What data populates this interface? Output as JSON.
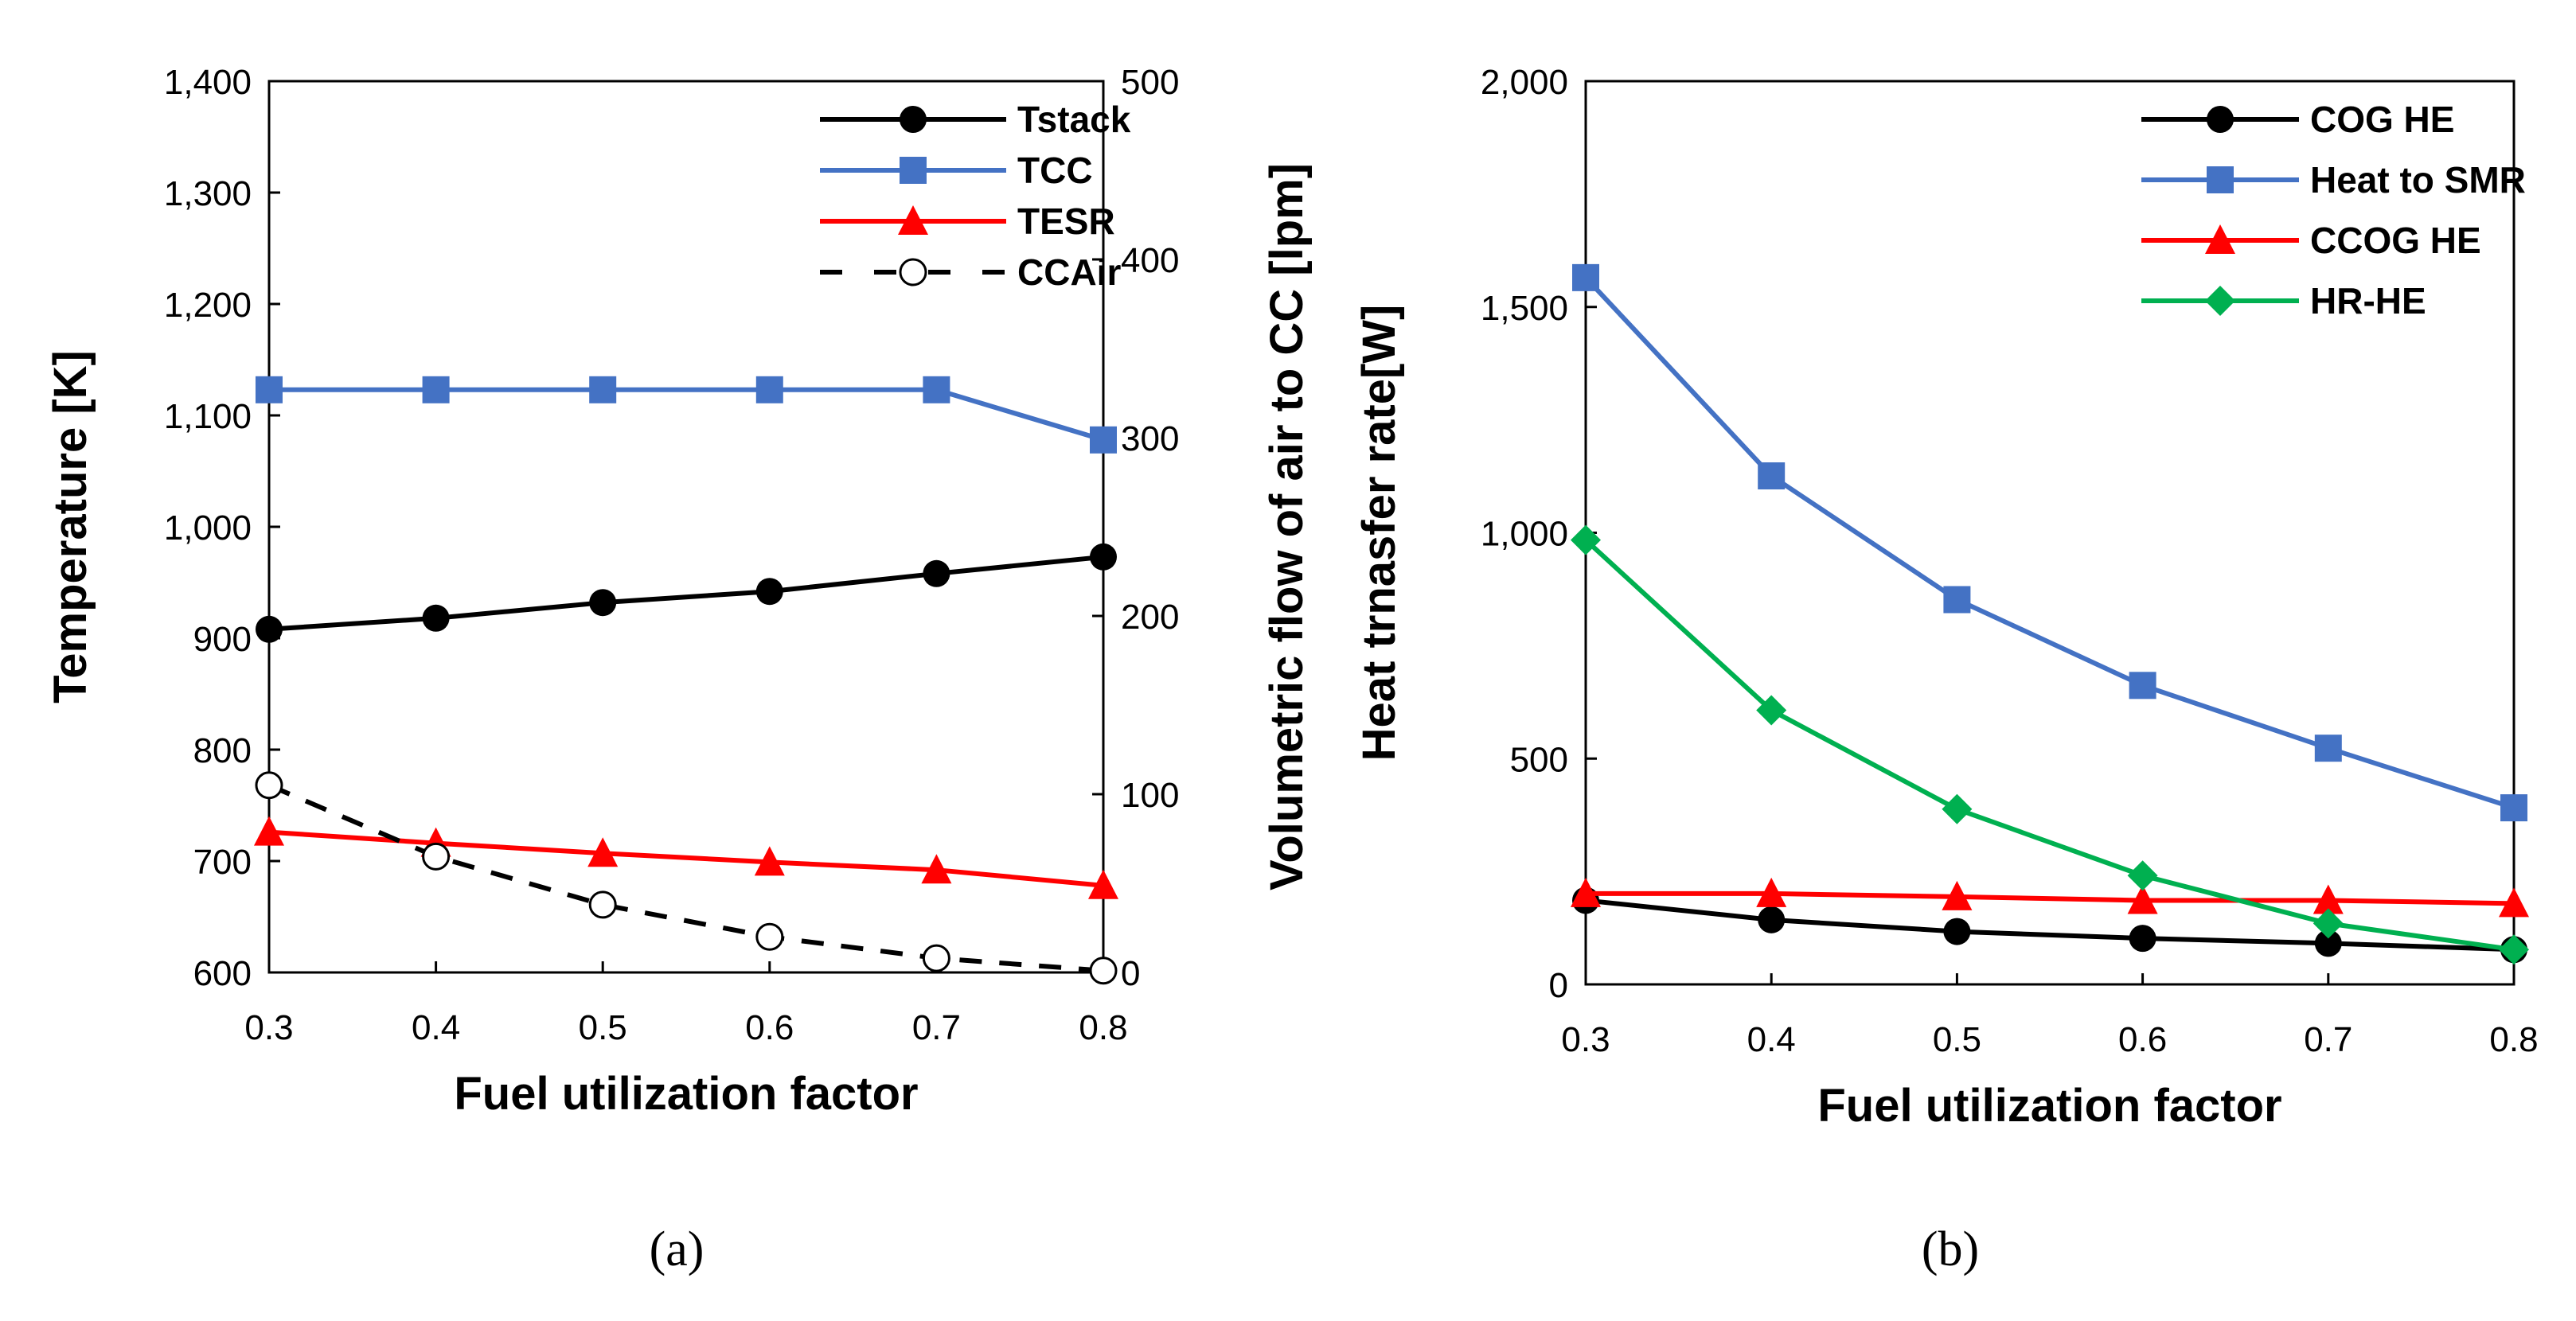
{
  "chart_data": [
    {
      "type": "line",
      "caption": "(a)",
      "xlabel": "Fuel utilization factor",
      "ylabel": "Temperature [K]",
      "y2label": "Volumetric flow of air to CC [lpm]",
      "x": [
        0.3,
        0.4,
        0.5,
        0.6,
        0.7,
        0.8
      ],
      "xlim": [
        0.3,
        0.8
      ],
      "xticks": [
        "0.3",
        "0.4",
        "0.5",
        "0.6",
        "0.7",
        "0.8"
      ],
      "ylim": [
        600,
        1400
      ],
      "yticks": [
        "600",
        "700",
        "800",
        "900",
        "1,000",
        "1,100",
        "1,200",
        "1,300",
        "1,400"
      ],
      "y2lim": [
        0,
        500
      ],
      "y2ticks": [
        "0",
        "100",
        "200",
        "300",
        "400",
        "500"
      ],
      "legend": "top-right",
      "grid": false,
      "series": [
        {
          "name": "Tstack",
          "axis": "left",
          "color": "#000000",
          "marker": "circle",
          "values": [
            908,
            918,
            932,
            942,
            958,
            973
          ]
        },
        {
          "name": "TCC",
          "axis": "left",
          "color": "#4472C4",
          "marker": "square",
          "values": [
            1123,
            1123,
            1123,
            1123,
            1123,
            1078
          ]
        },
        {
          "name": "TESR",
          "axis": "left",
          "color": "#FF0000",
          "marker": "triangle",
          "values": [
            726,
            716,
            707,
            699,
            692,
            678
          ]
        },
        {
          "name": "CCAir",
          "axis": "right",
          "color": "#000000",
          "marker": "open-circle",
          "dashed": true,
          "values": [
            105,
            65,
            38,
            20,
            8,
            1
          ]
        }
      ]
    },
    {
      "type": "line",
      "caption": "(b)",
      "xlabel": "Fuel utilization factor",
      "ylabel": "Heat trnasfer rate[W]",
      "x": [
        0.3,
        0.4,
        0.5,
        0.6,
        0.7,
        0.8
      ],
      "xlim": [
        0.3,
        0.8
      ],
      "xticks": [
        "0.3",
        "0.4",
        "0.5",
        "0.6",
        "0.7",
        "0.8"
      ],
      "ylim": [
        0,
        2000
      ],
      "yticks": [
        "0",
        "500",
        "1,000",
        "1,500",
        "2,000"
      ],
      "legend": "top-right",
      "grid": false,
      "series": [
        {
          "name": "COG HE",
          "color": "#000000",
          "marker": "circle",
          "values": [
            186,
            143,
            117,
            102,
            91,
            77
          ]
        },
        {
          "name": "Heat to SMR",
          "color": "#4472C4",
          "marker": "square",
          "values": [
            1565,
            1126,
            852,
            662,
            523,
            391
          ]
        },
        {
          "name": "CCOG HE",
          "color": "#FF0000",
          "marker": "triangle",
          "values": [
            201,
            201,
            194,
            186,
            186,
            179
          ]
        },
        {
          "name": "HR-HE",
          "color": "#00B050",
          "marker": "diamond",
          "values": [
            984,
            607,
            388,
            241,
            135,
            77
          ]
        }
      ]
    }
  ]
}
